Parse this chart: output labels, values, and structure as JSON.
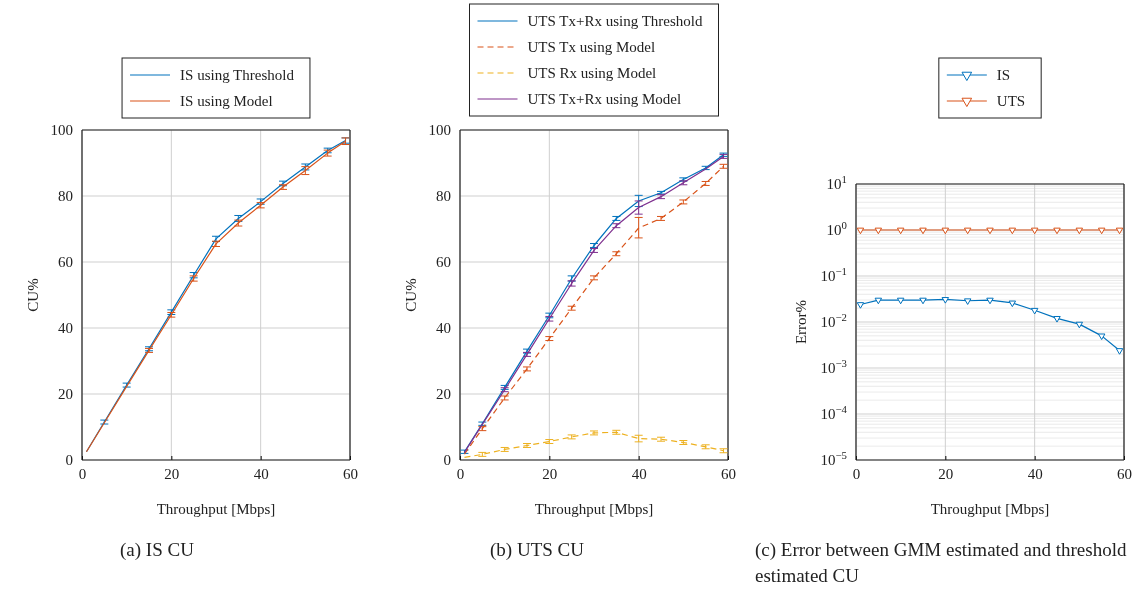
{
  "chart_data": [
    {
      "type": "line",
      "title": "(a) IS CU",
      "xlabel": "Throughput [Mbps]",
      "ylabel": "CU%",
      "x": [
        1,
        5,
        10,
        15,
        20,
        25,
        30,
        35,
        40,
        45,
        50,
        55,
        59
      ],
      "xlim": [
        0,
        60
      ],
      "xticks": [
        0,
        20,
        40,
        60
      ],
      "ylim": [
        0,
        100
      ],
      "yticks": [
        0,
        20,
        40,
        60,
        80,
        100
      ],
      "grid": true,
      "legend": "top",
      "series": [
        {
          "name": "IS using Threshold",
          "color": "#0072bd",
          "values": [
            2.5,
            11.5,
            22.7,
            33.7,
            44.8,
            56,
            67,
            73.2,
            78.3,
            83.8,
            88.8,
            93.8,
            96.8
          ],
          "errors": [
            null,
            0.6,
            0.6,
            0.6,
            0.7,
            0.8,
            0.8,
            0.9,
            0.8,
            0.7,
            0.9,
            0.7,
            0.8
          ]
        },
        {
          "name": "IS using Model",
          "color": "#d95319",
          "values": [
            2.5,
            11.3,
            22.3,
            33.2,
            44,
            55,
            65.5,
            71.8,
            77.2,
            82.7,
            87.7,
            93,
            96.6
          ],
          "errors": [
            null,
            null,
            null,
            0.6,
            0.7,
            0.8,
            0.8,
            0.9,
            0.8,
            0.7,
            1.2,
            0.9,
            1.0
          ]
        }
      ]
    },
    {
      "type": "line",
      "title": "(b) UTS CU",
      "xlabel": "Throughput [Mbps]",
      "ylabel": "CU%",
      "x": [
        1,
        5,
        10,
        15,
        20,
        25,
        30,
        35,
        40,
        45,
        50,
        55,
        59
      ],
      "xlim": [
        0,
        60
      ],
      "xticks": [
        0,
        20,
        40,
        60
      ],
      "ylim": [
        0,
        100
      ],
      "yticks": [
        0,
        20,
        40,
        60,
        80,
        100
      ],
      "grid": true,
      "legend": "top",
      "series": [
        {
          "name": "UTS Tx+Rx using Threshold",
          "color": "#0072bd",
          "line_style": "solid",
          "values": [
            2.5,
            11,
            22,
            33,
            43.8,
            55,
            65,
            73.2,
            78.5,
            81,
            85,
            88.5,
            92.5
          ],
          "errors": [
            0.5,
            0.5,
            0.6,
            0.6,
            0.7,
            0.8,
            0.6,
            0.6,
            1.7,
            0.4,
            0.5,
            0.5,
            0.5
          ]
        },
        {
          "name": "UTS Tx using Model",
          "color": "#d95319",
          "line_style": "dashed",
          "values": [
            1.8,
            9.5,
            18.8,
            27.6,
            36.8,
            46,
            55.2,
            62.5,
            70.3,
            73.2,
            78.2,
            83.8,
            89
          ],
          "errors": [
            null,
            0.6,
            0.6,
            0.6,
            0.6,
            0.6,
            0.6,
            0.6,
            [
              67.3,
              73.5
            ],
            0.6,
            0.6,
            0.6,
            0.6
          ]
        },
        {
          "name": "UTS Rx using Model",
          "color": "#edb120",
          "line_style": "dashed",
          "values": [
            0.8,
            1.7,
            3.2,
            4.4,
            5.6,
            7,
            8.2,
            8.4,
            6.5,
            6.3,
            5.3,
            4,
            2.8
          ],
          "errors": [
            null,
            0.6,
            0.6,
            0.6,
            0.6,
            0.6,
            0.6,
            0.6,
            1.0,
            0.6,
            0.6,
            0.6,
            0.6
          ]
        },
        {
          "name": "UTS Tx+Rx using Model",
          "color": "#7e2f8e",
          "line_style": "solid",
          "values": [
            2.3,
            10.8,
            21.3,
            32,
            42.8,
            53.5,
            63.5,
            71,
            76.5,
            79.8,
            84,
            88.2,
            92
          ],
          "errors": [
            null,
            null,
            0.6,
            0.6,
            0.7,
            0.8,
            0.6,
            0.6,
            2,
            0.6,
            0.6,
            null,
            0.6
          ]
        }
      ]
    },
    {
      "type": "line",
      "title": "(c) Error between GMM estimated and threshold estimated CU",
      "xlabel": "Throughput [Mbps]",
      "ylabel": "Error%",
      "log": true,
      "x": [
        1,
        5,
        10,
        15,
        20,
        25,
        30,
        35,
        40,
        45,
        50,
        55,
        59
      ],
      "xlim": [
        0,
        60
      ],
      "xticks": [
        0,
        20,
        40,
        60
      ],
      "ylim": [
        1e-05,
        10
      ],
      "yticks": [
        {
          "value": 1e-05,
          "label": "10$^{−5}$"
        },
        {
          "value": 0.0001,
          "label": "10$^{−4}$"
        },
        {
          "value": 0.001,
          "label": "10$^{−3}$"
        },
        {
          "value": 0.01,
          "label": "10$^{−2}$"
        },
        {
          "value": 0.1,
          "label": "10$^{−1}$"
        },
        {
          "value": 1,
          "label": "10$^{0}$"
        },
        {
          "value": 10,
          "label": "10$^{1}$"
        }
      ],
      "grid": true,
      "legend": "top",
      "marker": "triangle",
      "series": [
        {
          "name": "IS",
          "color": "#0072bd",
          "values": [
            0.024,
            0.03,
            0.03,
            0.03,
            0.031,
            0.029,
            0.03,
            0.026,
            0.018,
            0.012,
            0.009,
            0.005,
            0.0024
          ]
        },
        {
          "name": "UTS",
          "color": "#d95319",
          "values": [
            1,
            1,
            1,
            1,
            1,
            1,
            1,
            1,
            1,
            1,
            1,
            1,
            1
          ]
        }
      ]
    }
  ]
}
